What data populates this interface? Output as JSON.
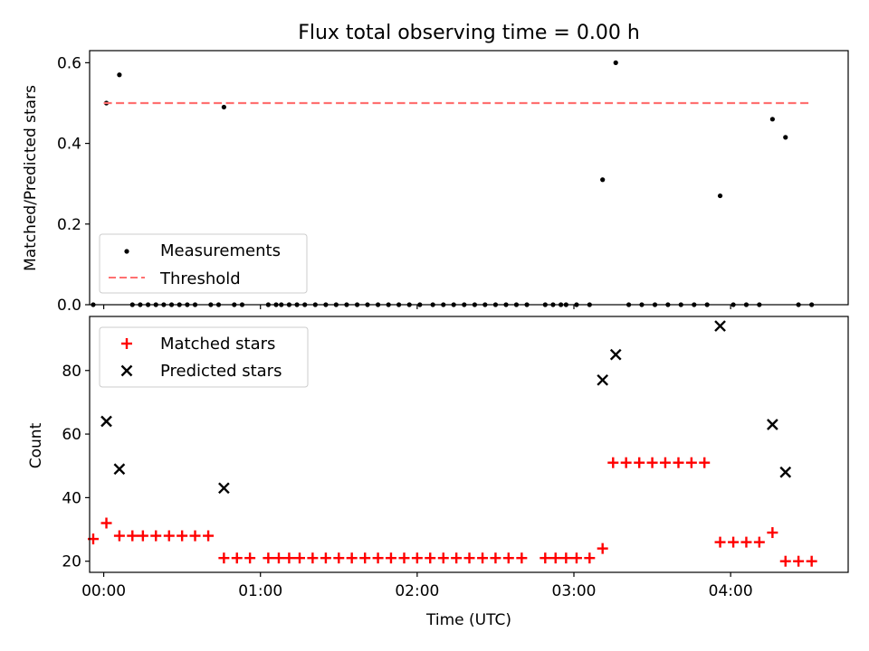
{
  "chart_data": [
    {
      "type": "scatter",
      "title": "Flux total observing time = 0.00 h",
      "xlabel": "",
      "ylabel": "Matched/Predicted stars",
      "xlim": [
        -0.09,
        4.75
      ],
      "ylim": [
        0.0,
        0.63
      ],
      "yticks": [
        0.0,
        0.2,
        0.4,
        0.6
      ],
      "yticklabels": [
        "0.0",
        "0.2",
        "0.4",
        "0.6"
      ],
      "xticks": [
        0,
        1,
        2,
        3,
        4
      ],
      "grid": false,
      "legend_position": "lower-left",
      "series": [
        {
          "name": "Measurements",
          "kind": "scatter",
          "color": "#000000",
          "x": [
            -0.067,
            0.017,
            0.1,
            0.183,
            0.233,
            0.283,
            0.333,
            0.383,
            0.433,
            0.483,
            0.533,
            0.583,
            0.683,
            0.733,
            0.767,
            0.833,
            0.883,
            1.05,
            1.1,
            1.133,
            1.183,
            1.233,
            1.283,
            1.35,
            1.417,
            1.483,
            1.55,
            1.617,
            1.683,
            1.75,
            1.817,
            1.883,
            1.95,
            2.017,
            2.1,
            2.167,
            2.233,
            2.3,
            2.367,
            2.433,
            2.5,
            2.567,
            2.633,
            2.7,
            2.817,
            2.867,
            2.917,
            2.95,
            3.017,
            3.1,
            3.183,
            3.267,
            3.35,
            3.433,
            3.517,
            3.6,
            3.683,
            3.767,
            3.85,
            3.933,
            4.017,
            4.1,
            4.183,
            4.267,
            4.35,
            4.433,
            4.517
          ],
          "y": [
            0.0,
            0.5,
            0.57,
            0.0,
            0.0,
            0.0,
            0.0,
            0.0,
            0.0,
            0.0,
            0.0,
            0.0,
            0.0,
            0.0,
            0.49,
            0.0,
            0.0,
            0.0,
            0.0,
            0.0,
            0.0,
            0.0,
            0.0,
            0.0,
            0.0,
            0.0,
            0.0,
            0.0,
            0.0,
            0.0,
            0.0,
            0.0,
            0.0,
            0.0,
            0.0,
            0.0,
            0.0,
            0.0,
            0.0,
            0.0,
            0.0,
            0.0,
            0.0,
            0.0,
            0.0,
            0.0,
            0.0,
            0.0,
            0.0,
            0.0,
            0.31,
            0.6,
            0.0,
            0.0,
            0.0,
            0.0,
            0.0,
            0.0,
            0.0,
            0.27,
            0.0,
            0.0,
            0.0,
            0.46,
            0.415,
            0.0,
            0.0
          ]
        },
        {
          "name": "Threshold",
          "kind": "line",
          "style": "dashed",
          "color": "#ff7070",
          "x": [
            0.0,
            4.5
          ],
          "y": [
            0.5,
            0.5
          ]
        }
      ]
    },
    {
      "type": "scatter",
      "title": "",
      "xlabel": "Time (UTC)",
      "ylabel": "Count",
      "xlim": [
        -0.09,
        4.75
      ],
      "ylim": [
        16.5,
        97.0
      ],
      "yticks": [
        20,
        40,
        60,
        80
      ],
      "yticklabels": [
        "20",
        "40",
        "60",
        "80"
      ],
      "xticks": [
        0,
        1,
        2,
        3,
        4
      ],
      "xticklabels": [
        "00:00",
        "01:00",
        "02:00",
        "03:00",
        "04:00"
      ],
      "grid": false,
      "legend_position": "upper-left",
      "series": [
        {
          "name": "Matched stars",
          "kind": "scatter",
          "marker": "plus",
          "color": "#ff0000",
          "x": [
            -0.067,
            0.017,
            0.1,
            0.183,
            0.25,
            0.333,
            0.417,
            0.5,
            0.583,
            0.667,
            0.767,
            0.85,
            0.933,
            1.05,
            1.117,
            1.183,
            1.25,
            1.333,
            1.417,
            1.5,
            1.583,
            1.667,
            1.75,
            1.833,
            1.917,
            2.0,
            2.083,
            2.167,
            2.25,
            2.333,
            2.417,
            2.5,
            2.583,
            2.667,
            2.817,
            2.883,
            2.95,
            3.017,
            3.1,
            3.183,
            3.25,
            3.333,
            3.417,
            3.5,
            3.583,
            3.667,
            3.75,
            3.833,
            3.933,
            4.017,
            4.1,
            4.183,
            4.267,
            4.35,
            4.433,
            4.517
          ],
          "y": [
            27,
            32,
            28,
            28,
            28,
            28,
            28,
            28,
            28,
            28,
            21,
            21,
            21,
            21,
            21,
            21,
            21,
            21,
            21,
            21,
            21,
            21,
            21,
            21,
            21,
            21,
            21,
            21,
            21,
            21,
            21,
            21,
            21,
            21,
            21,
            21,
            21,
            21,
            21,
            24,
            51,
            51,
            51,
            51,
            51,
            51,
            51,
            51,
            26,
            26,
            26,
            26,
            29,
            20,
            20,
            20
          ]
        },
        {
          "name": "Predicted stars",
          "kind": "scatter",
          "marker": "x",
          "color": "#000000",
          "x": [
            0.017,
            0.1,
            0.767,
            3.183,
            3.267,
            3.933,
            4.267,
            4.35
          ],
          "y": [
            64,
            49,
            43,
            77,
            85,
            94,
            63,
            48
          ]
        }
      ]
    }
  ]
}
